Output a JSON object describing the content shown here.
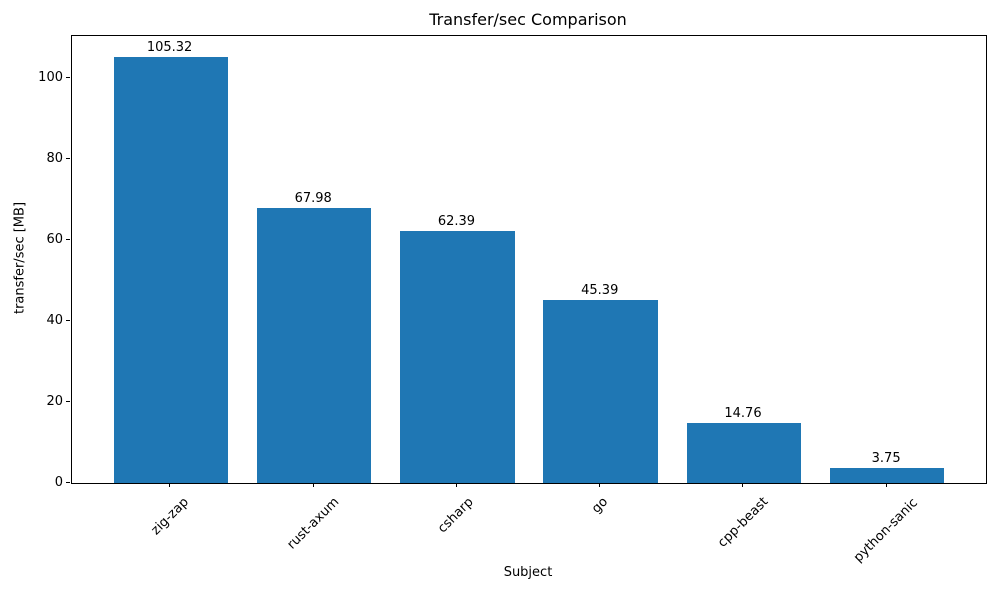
{
  "chart_data": {
    "type": "bar",
    "title": "Transfer/sec Comparison",
    "xlabel": "Subject",
    "ylabel": "transfer/sec [MB]",
    "categories": [
      "zig-zap",
      "rust-axum",
      "csharp",
      "go",
      "cpp-beast",
      "python-sanic"
    ],
    "values": [
      105.32,
      67.98,
      62.39,
      45.39,
      14.76,
      3.75
    ],
    "bar_labels": [
      "105.32",
      "67.98",
      "62.39",
      "45.39",
      "14.76",
      "3.75"
    ],
    "yticks": [
      0,
      20,
      40,
      60,
      80,
      100
    ],
    "ylim": [
      0,
      110.6
    ],
    "xtick_rotation_deg": 45,
    "bar_color": "#1f77b4",
    "axis_color": "#000000",
    "text_color": "#000000",
    "background_color": "#ffffff",
    "grid": false,
    "legend": null
  }
}
